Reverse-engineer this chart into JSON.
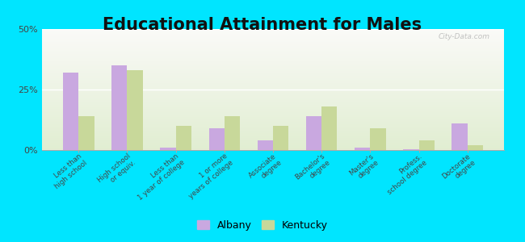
{
  "title": "Educational Attainment for Males",
  "categories": [
    "Less than\nhigh school",
    "High school\nor equiv.",
    "Less than\n1 year of college",
    "1 or more\nyears of college",
    "Associate\ndegree",
    "Bachelor's\ndegree",
    "Master's\ndegree",
    "Profess.\nschool degree",
    "Doctorate\ndegree"
  ],
  "albany": [
    32,
    35,
    1,
    9,
    4,
    14,
    1,
    0.5,
    11
  ],
  "kentucky": [
    14,
    33,
    10,
    14,
    10,
    18,
    9,
    4,
    2
  ],
  "albany_color": "#c9a8e0",
  "kentucky_color": "#c8d89a",
  "bg_outer": "#00e5ff",
  "bg_plot_top": "#e8f0d8",
  "bg_plot_bottom": "#f5f8ee",
  "ylim": [
    0,
    50
  ],
  "yticks": [
    0,
    25,
    50
  ],
  "ytick_labels": [
    "0%",
    "25%",
    "50%"
  ],
  "title_fontsize": 15,
  "legend_albany": "Albany",
  "legend_kentucky": "Kentucky",
  "watermark": "City-Data.com"
}
